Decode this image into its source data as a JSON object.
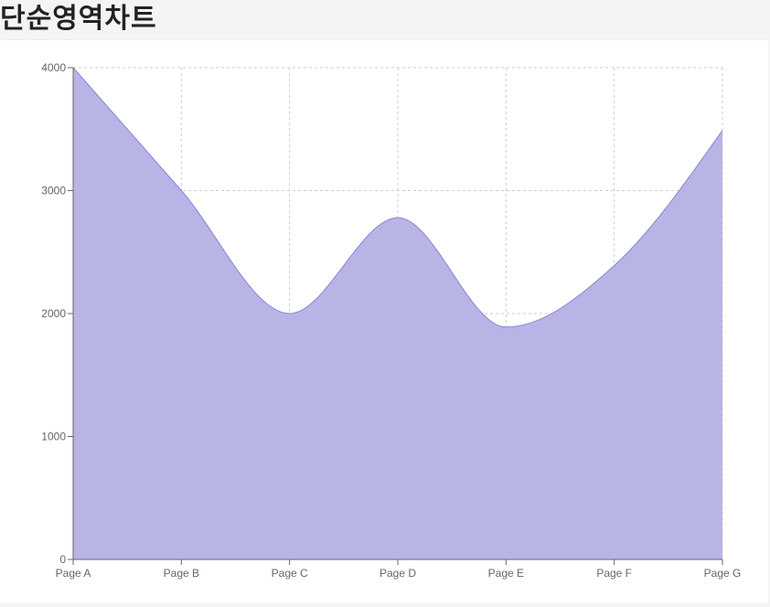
{
  "page": {
    "title": "단순영역차트"
  },
  "chart_data": {
    "type": "area",
    "title": "단순영역차트",
    "xlabel": "",
    "ylabel": "",
    "categories": [
      "Page A",
      "Page B",
      "Page C",
      "Page D",
      "Page E",
      "Page F",
      "Page G"
    ],
    "series": [
      {
        "values": [
          4000,
          3000,
          2000,
          2780,
          1890,
          2390,
          3490
        ]
      }
    ],
    "ylim": [
      0,
      4000
    ],
    "yticks": [
      0,
      1000,
      2000,
      3000,
      4000
    ],
    "grid": true,
    "legend": "none",
    "colors": {
      "fill": "#b8b5e6",
      "stroke": "#8884d8",
      "grid": "#cccccc",
      "axis": "#666666"
    }
  }
}
